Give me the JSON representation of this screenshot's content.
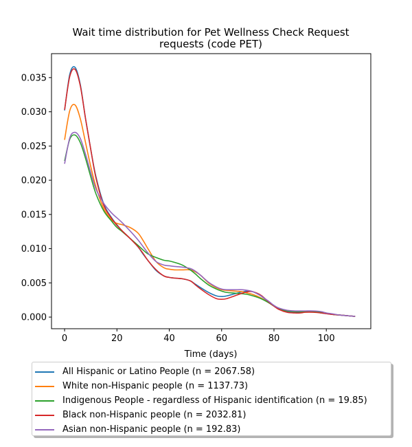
{
  "chart_data": {
    "type": "line",
    "title": "Wait time distribution  for Pet Wellness Check Request requests (code PET)",
    "title_lines": [
      "Wait time distribution  for Pet Wellness Check Request",
      "requests (code PET)"
    ],
    "xlabel": "Time (days)",
    "ylabel": "",
    "xlim": [
      -5,
      117
    ],
    "ylim": [
      -0.0017,
      0.0385
    ],
    "x_ticks": [
      0,
      20,
      40,
      60,
      80,
      100
    ],
    "y_ticks": [
      0.0,
      0.005,
      0.01,
      0.015,
      0.02,
      0.025,
      0.03,
      0.035
    ],
    "y_tick_labels": [
      "0.000",
      "0.005",
      "0.010",
      "0.015",
      "0.020",
      "0.025",
      "0.030",
      "0.035"
    ],
    "grid": false,
    "legend_position": "below",
    "x": [
      0,
      2,
      4,
      6,
      8,
      10,
      12,
      15,
      18,
      20,
      22,
      25,
      28,
      30,
      32,
      35,
      38,
      40,
      42,
      45,
      48,
      50,
      52,
      55,
      58,
      60,
      62,
      65,
      68,
      70,
      72,
      75,
      78,
      80,
      82,
      85,
      88,
      90,
      92,
      95,
      98,
      100,
      102,
      105,
      108,
      111
    ],
    "series": [
      {
        "name": "All Hispanic or Latino People (n = 2067.58)",
        "color": "#1f77b4",
        "values": [
          0.0302,
          0.0355,
          0.0365,
          0.034,
          0.029,
          0.0245,
          0.0205,
          0.0165,
          0.0145,
          0.0135,
          0.0126,
          0.0115,
          0.0103,
          0.0092,
          0.0082,
          0.0068,
          0.006,
          0.0058,
          0.0057,
          0.0056,
          0.0053,
          0.0048,
          0.0043,
          0.0036,
          0.0031,
          0.003,
          0.0031,
          0.0034,
          0.0037,
          0.0038,
          0.0037,
          0.0031,
          0.0022,
          0.0017,
          0.0012,
          0.0008,
          0.0007,
          0.0007,
          0.0008,
          0.0008,
          0.0006,
          0.0005,
          0.0004,
          0.0003,
          0.0002,
          0.0001
        ]
      },
      {
        "name": "White non-Hispanic people (n = 1137.73)",
        "color": "#ff7f0e",
        "values": [
          0.0259,
          0.0302,
          0.031,
          0.029,
          0.0255,
          0.022,
          0.019,
          0.0158,
          0.0142,
          0.0137,
          0.0135,
          0.0131,
          0.0123,
          0.0112,
          0.0099,
          0.0081,
          0.0072,
          0.007,
          0.0069,
          0.0069,
          0.0069,
          0.0066,
          0.0061,
          0.005,
          0.0043,
          0.004,
          0.0039,
          0.0038,
          0.0037,
          0.0035,
          0.0033,
          0.0028,
          0.0021,
          0.0016,
          0.0012,
          0.0009,
          0.0008,
          0.0008,
          0.0008,
          0.0008,
          0.0007,
          0.0006,
          0.0004,
          0.0003,
          0.0002,
          0.0001
        ]
      },
      {
        "name": "Indigenous People - regardless of Hispanic identification (n = 19.85)",
        "color": "#2ca02c",
        "values": [
          0.0228,
          0.026,
          0.0266,
          0.0255,
          0.0232,
          0.0205,
          0.018,
          0.0155,
          0.014,
          0.0131,
          0.0125,
          0.0115,
          0.0105,
          0.0098,
          0.0092,
          0.0087,
          0.0083,
          0.0082,
          0.008,
          0.0076,
          0.0069,
          0.0063,
          0.0056,
          0.0047,
          0.0041,
          0.0038,
          0.0036,
          0.0035,
          0.0034,
          0.0033,
          0.0031,
          0.0027,
          0.0021,
          0.0016,
          0.0012,
          0.0009,
          0.0008,
          0.0008,
          0.0008,
          0.0008,
          0.0007,
          0.0006,
          0.0004,
          0.0003,
          0.0002,
          0.0001
        ]
      },
      {
        "name": "Black non-Hispanic people (n = 2032.81)",
        "color": "#d62728",
        "values": [
          0.0303,
          0.0352,
          0.0362,
          0.0338,
          0.029,
          0.0245,
          0.0203,
          0.0163,
          0.0144,
          0.0134,
          0.0126,
          0.0115,
          0.0103,
          0.0093,
          0.0082,
          0.0069,
          0.006,
          0.0058,
          0.0057,
          0.0056,
          0.0053,
          0.0047,
          0.0041,
          0.0033,
          0.0027,
          0.0026,
          0.0027,
          0.0031,
          0.0035,
          0.0037,
          0.0037,
          0.0032,
          0.0022,
          0.0016,
          0.0011,
          0.0007,
          0.0006,
          0.0006,
          0.0007,
          0.0007,
          0.0006,
          0.0005,
          0.0004,
          0.0003,
          0.0002,
          0.0001
        ]
      },
      {
        "name": "Asian non-Hispanic people (n = 192.83)",
        "color": "#9467bd",
        "values": [
          0.0224,
          0.0262,
          0.027,
          0.0261,
          0.0238,
          0.0211,
          0.0187,
          0.0166,
          0.0152,
          0.0145,
          0.0138,
          0.0126,
          0.0113,
          0.0103,
          0.0093,
          0.0081,
          0.0076,
          0.0075,
          0.0074,
          0.0073,
          0.0071,
          0.0067,
          0.0061,
          0.0051,
          0.0044,
          0.0041,
          0.004,
          0.004,
          0.004,
          0.0039,
          0.0037,
          0.0031,
          0.0023,
          0.0017,
          0.0013,
          0.001,
          0.0009,
          0.0009,
          0.0009,
          0.0009,
          0.0008,
          0.0006,
          0.0005,
          0.0003,
          0.0002,
          0.0001
        ]
      }
    ]
  }
}
